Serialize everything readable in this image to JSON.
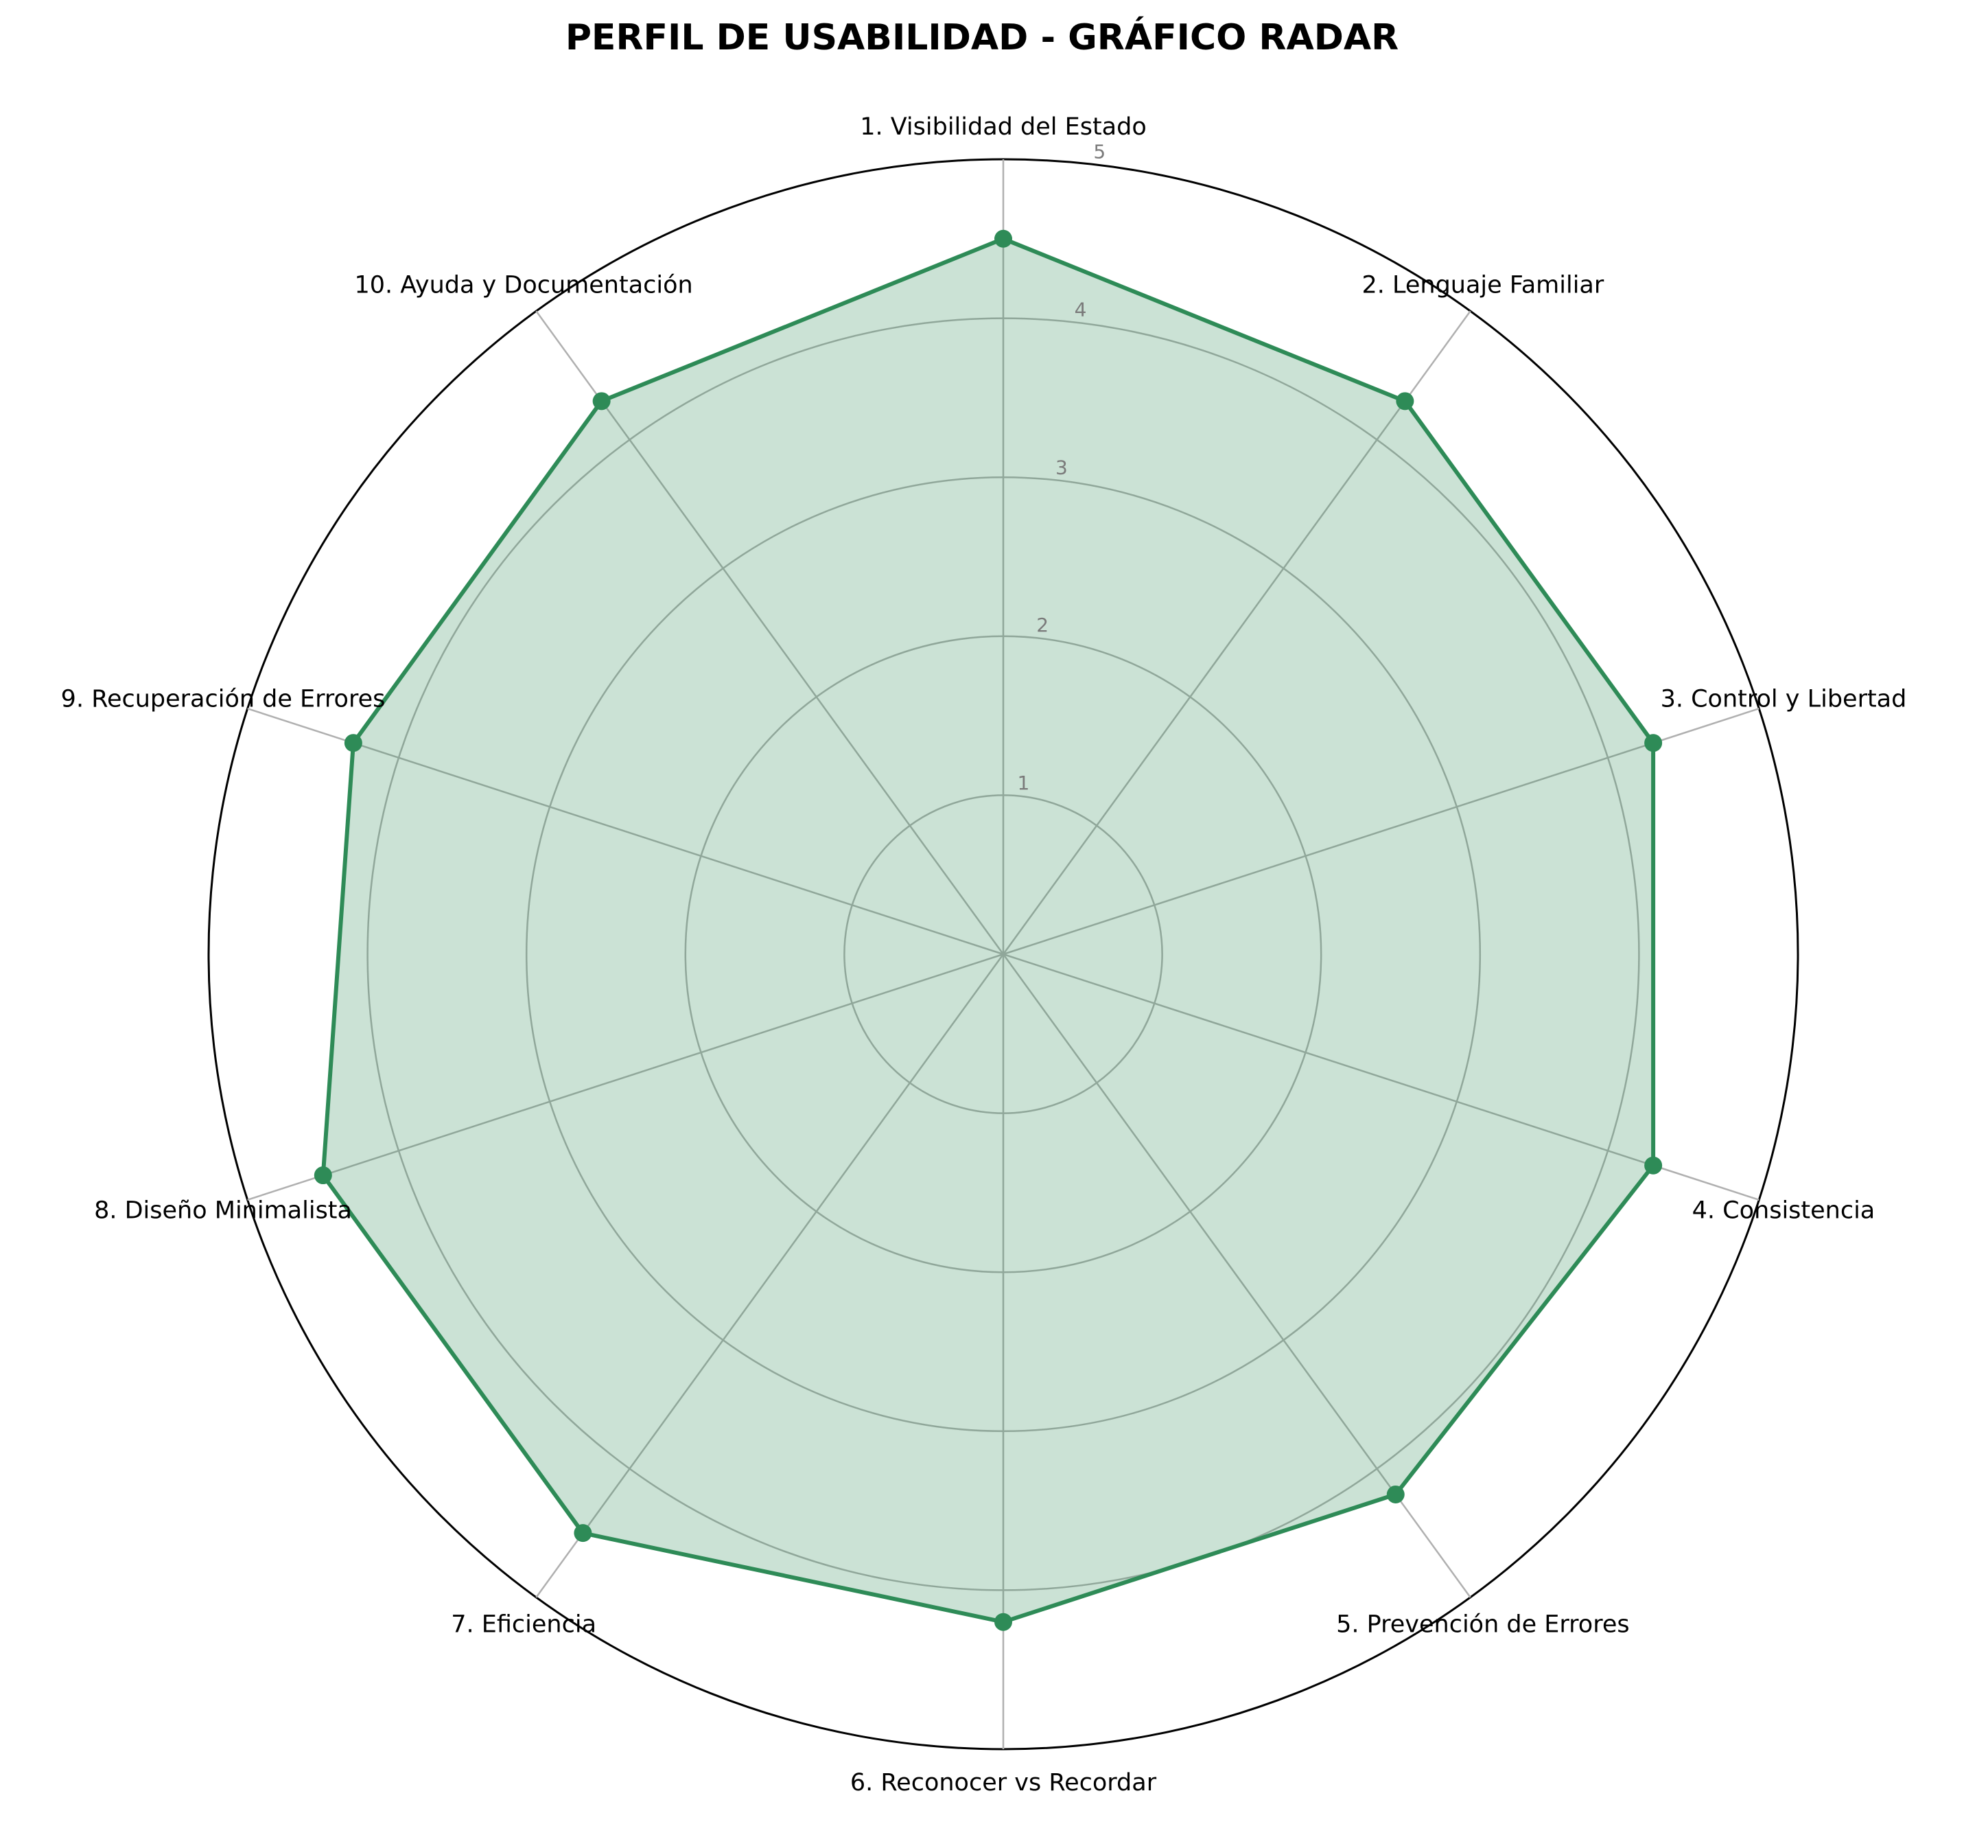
{
  "chart_data": {
    "type": "radar",
    "title": "PERFIL DE USABILIDAD - GRÁFICO RADAR",
    "categories": [
      "1. Visibilidad del Estado",
      "2. Lenguaje Familiar",
      "3. Control y Libertad",
      "4. Consistencia",
      "5. Prevención de Errores",
      "6. Reconocer vs Recordar",
      "7. Eficiencia",
      "8. Diseño Minimalista",
      "9. Recuperación de Errores",
      "10. Ayuda y Documentación"
    ],
    "values": [
      4.5,
      4.3,
      4.3,
      4.3,
      4.2,
      4.2,
      4.5,
      4.5,
      4.3,
      4.3
    ],
    "rlim": [
      0,
      5
    ],
    "rticks": [
      "1",
      "2",
      "3",
      "4",
      "5"
    ],
    "grid": true,
    "colors": {
      "line": "#2e8b57",
      "fill": "#2e8b57",
      "grid": "#b0b0b0",
      "frame": "#000000"
    }
  }
}
